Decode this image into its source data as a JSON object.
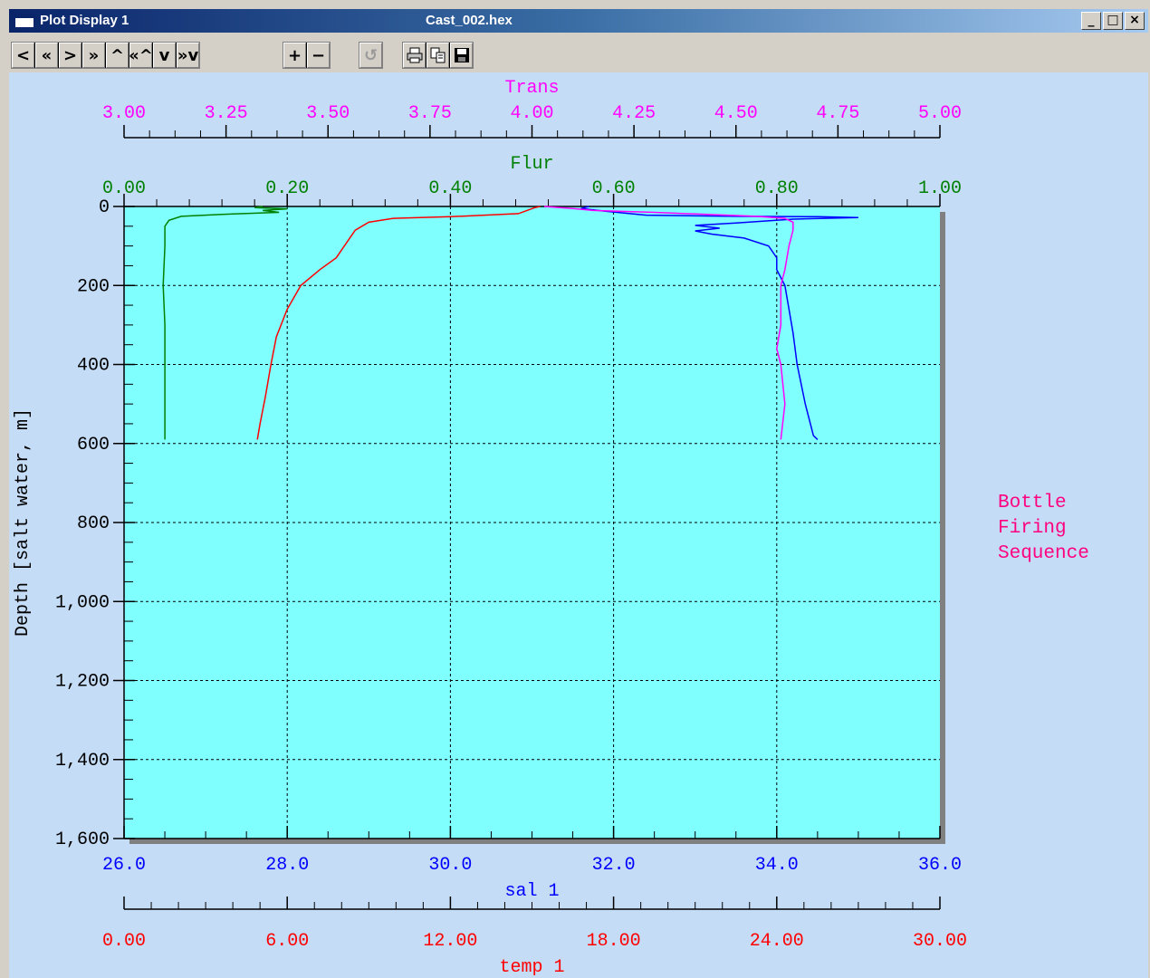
{
  "window": {
    "title": "Plot Display 1",
    "file": "Cast_002.hex",
    "controls": [
      "_",
      "□",
      "×"
    ]
  },
  "toolbar": {
    "nav": [
      "<",
      "«",
      ">",
      "»",
      "^",
      "«^",
      "v",
      "»v"
    ],
    "zoom": [
      "+",
      "−"
    ],
    "undo": "↺",
    "print_icon": "printer-icon",
    "copy_icon": "copy-icon",
    "save_icon": "save-icon"
  },
  "colors": {
    "plot_bg": "#80ffff",
    "window_bg": "#c4dcf6",
    "sal": "#0000ff",
    "temp": "#ff0000",
    "flur": "#008000",
    "trans": "#ff00ff",
    "bottle": "#ff0080"
  },
  "legend": {
    "bottle": [
      "Bottle",
      "Firing",
      "Sequence"
    ]
  },
  "chart_data": {
    "type": "line",
    "grid": true,
    "y_axis": {
      "label": "Depth [salt water, m]",
      "range": [
        0,
        1600
      ],
      "inverted": true,
      "ticks": [
        0,
        200,
        400,
        600,
        800,
        1000,
        1200,
        1400,
        1600
      ],
      "tick_labels": [
        "0",
        "200",
        "400",
        "600",
        "800",
        "1,000",
        "1,200",
        "1,400",
        "1,600"
      ]
    },
    "x_axes": {
      "trans": {
        "label": "Trans",
        "range": [
          3.0,
          5.0
        ],
        "position": "top-outer",
        "tick_labels": [
          "3.00",
          "3.25",
          "3.50",
          "3.75",
          "4.00",
          "4.25",
          "4.50",
          "4.75",
          "5.00"
        ]
      },
      "flur": {
        "label": "Flur",
        "range": [
          0.0,
          1.0
        ],
        "position": "top-inner",
        "tick_labels": [
          "0.00",
          "0.20",
          "0.40",
          "0.60",
          "0.80",
          "1.00"
        ]
      },
      "sal": {
        "label": "sal 1",
        "range": [
          26.0,
          36.0
        ],
        "position": "bottom-inner",
        "tick_labels": [
          "26.0",
          "28.0",
          "30.0",
          "32.0",
          "34.0",
          "36.0"
        ]
      },
      "temp": {
        "label": "temp 1",
        "range": [
          0.0,
          30.0
        ],
        "position": "bottom-outer",
        "tick_labels": [
          "0.00",
          "6.00",
          "12.00",
          "18.00",
          "24.00",
          "30.00"
        ]
      }
    },
    "series": [
      {
        "name": "sal 1",
        "axis": "sal",
        "color": "#0000ff",
        "points": [
          [
            31.7,
            0
          ],
          [
            31.6,
            5
          ],
          [
            31.9,
            12
          ],
          [
            32.4,
            22
          ],
          [
            33.5,
            25
          ],
          [
            34.5,
            26
          ],
          [
            35.0,
            28
          ],
          [
            34.2,
            32
          ],
          [
            33.5,
            42
          ],
          [
            33.0,
            48
          ],
          [
            33.3,
            55
          ],
          [
            33.0,
            62
          ],
          [
            33.2,
            70
          ],
          [
            33.6,
            80
          ],
          [
            33.9,
            100
          ],
          [
            34.0,
            130
          ],
          [
            34.0,
            160
          ],
          [
            34.1,
            200
          ],
          [
            34.15,
            260
          ],
          [
            34.2,
            320
          ],
          [
            34.25,
            400
          ],
          [
            34.35,
            500
          ],
          [
            34.45,
            580
          ],
          [
            34.5,
            590
          ]
        ]
      },
      {
        "name": "temp 1",
        "axis": "temp",
        "color": "#ff0000",
        "points": [
          [
            15.3,
            0
          ],
          [
            15.1,
            3
          ],
          [
            14.5,
            18
          ],
          [
            12.0,
            26
          ],
          [
            9.9,
            30
          ],
          [
            9.0,
            40
          ],
          [
            8.5,
            60
          ],
          [
            8.1,
            100
          ],
          [
            7.8,
            130
          ],
          [
            7.2,
            160
          ],
          [
            6.5,
            200
          ],
          [
            6.0,
            260
          ],
          [
            5.6,
            330
          ],
          [
            5.4,
            400
          ],
          [
            5.2,
            480
          ],
          [
            5.0,
            550
          ],
          [
            4.9,
            590
          ]
        ]
      },
      {
        "name": "Flur",
        "axis": "flur",
        "color": "#008000",
        "points": [
          [
            0.17,
            0
          ],
          [
            0.16,
            3
          ],
          [
            0.2,
            6
          ],
          [
            0.17,
            10
          ],
          [
            0.19,
            15
          ],
          [
            0.12,
            20
          ],
          [
            0.07,
            25
          ],
          [
            0.055,
            35
          ],
          [
            0.05,
            50
          ],
          [
            0.05,
            100
          ],
          [
            0.048,
            200
          ],
          [
            0.05,
            300
          ],
          [
            0.05,
            400
          ],
          [
            0.05,
            500
          ],
          [
            0.05,
            590
          ]
        ]
      },
      {
        "name": "Trans",
        "axis": "trans",
        "color": "#ff00ff",
        "points": [
          [
            4.03,
            0
          ],
          [
            4.1,
            5
          ],
          [
            4.15,
            10
          ],
          [
            4.3,
            15
          ],
          [
            4.55,
            25
          ],
          [
            4.62,
            30
          ],
          [
            4.64,
            40
          ],
          [
            4.64,
            60
          ],
          [
            4.63,
            100
          ],
          [
            4.62,
            160
          ],
          [
            4.61,
            200
          ],
          [
            4.61,
            300
          ],
          [
            4.6,
            360
          ],
          [
            4.61,
            400
          ],
          [
            4.62,
            500
          ],
          [
            4.61,
            590
          ]
        ]
      }
    ]
  }
}
